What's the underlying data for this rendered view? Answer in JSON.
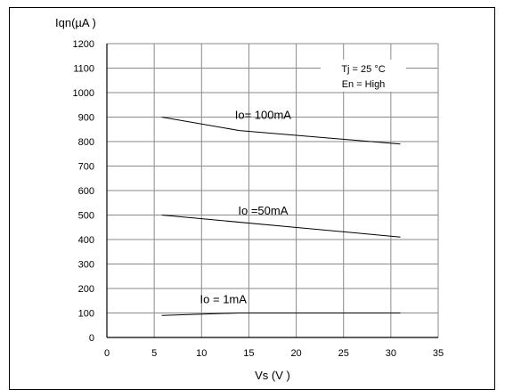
{
  "chart_data": {
    "type": "line",
    "ylabel": "Iqn(µA )",
    "xlabel": "Vs (V )",
    "xlim": [
      0,
      35
    ],
    "ylim": [
      0,
      1200
    ],
    "x_ticks": [
      0,
      5,
      10,
      15,
      20,
      25,
      30,
      35
    ],
    "y_ticks": [
      0,
      100,
      200,
      300,
      400,
      500,
      600,
      700,
      800,
      900,
      1000,
      1100,
      1200
    ],
    "grid": true,
    "annotation": [
      "Tj = 25 °C",
      "En = High"
    ],
    "series": [
      {
        "name": "Io= 100mA",
        "x": [
          5.8,
          14,
          31
        ],
        "y": [
          900,
          845,
          790
        ],
        "color": "#000000"
      },
      {
        "name": "Io =50mA",
        "x": [
          5.8,
          31
        ],
        "y": [
          500,
          410
        ],
        "color": "#000000"
      },
      {
        "name": "Io = 1mA",
        "x": [
          5.8,
          14,
          31
        ],
        "y": [
          90,
          100,
          100
        ],
        "color": "#000000"
      }
    ]
  }
}
